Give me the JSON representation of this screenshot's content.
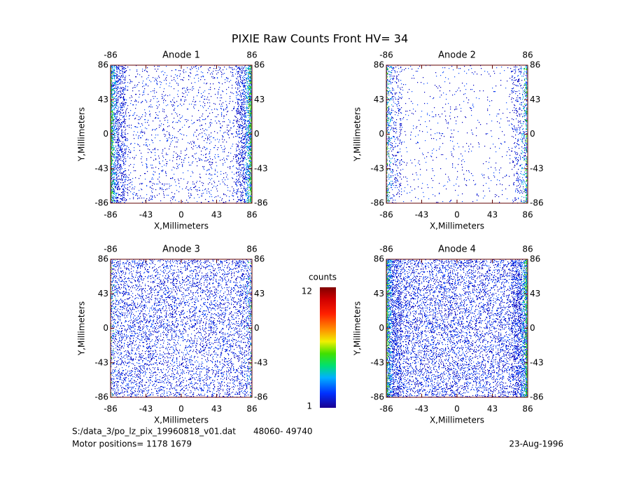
{
  "title": "PIXIE Raw Counts Front HV= 34",
  "chart_data": [
    {
      "type": "scatter",
      "title": "Anode 1",
      "xlabel": "X,Millimeters",
      "ylabel": "Y,Millimeters",
      "xlim": [
        -86,
        86
      ],
      "ylim": [
        -86,
        86
      ],
      "xticks": [
        -86,
        -43,
        0,
        43,
        86
      ],
      "yticks": [
        -86,
        -43,
        0,
        43,
        86
      ]
    },
    {
      "type": "scatter",
      "title": "Anode 2",
      "xlabel": "X,Millimeters",
      "ylabel": "Y,Millimeters",
      "xlim": [
        -86,
        86
      ],
      "ylim": [
        -86,
        86
      ],
      "xticks": [
        -86,
        -43,
        0,
        43,
        86
      ],
      "yticks": [
        -86,
        -43,
        0,
        43,
        86
      ]
    },
    {
      "type": "scatter",
      "title": "Anode 3",
      "xlabel": "X,Millimeters",
      "ylabel": "Y,Millimeters",
      "xlim": [
        -86,
        86
      ],
      "ylim": [
        -86,
        86
      ],
      "xticks": [
        -86,
        -43,
        0,
        43,
        86
      ],
      "yticks": [
        -86,
        -43,
        0,
        43,
        86
      ]
    },
    {
      "type": "scatter",
      "title": "Anode 4",
      "xlabel": "X,Millimeters",
      "ylabel": "Y,Millimeters",
      "xlim": [
        -86,
        86
      ],
      "ylim": [
        -86,
        86
      ],
      "xticks": [
        -86,
        -43,
        0,
        43,
        86
      ],
      "yticks": [
        -86,
        -43,
        0,
        43,
        86
      ]
    }
  ],
  "colorbar": {
    "label": "counts",
    "lim": [
      1,
      12
    ],
    "ticks": [
      1,
      12
    ]
  },
  "footer": {
    "file": "S:/data_3/po_lz_pix_19960818_v01.dat",
    "range": "48060- 49740",
    "motor": "Motor positions= 1178 1679",
    "date": "23-Aug-1996"
  }
}
